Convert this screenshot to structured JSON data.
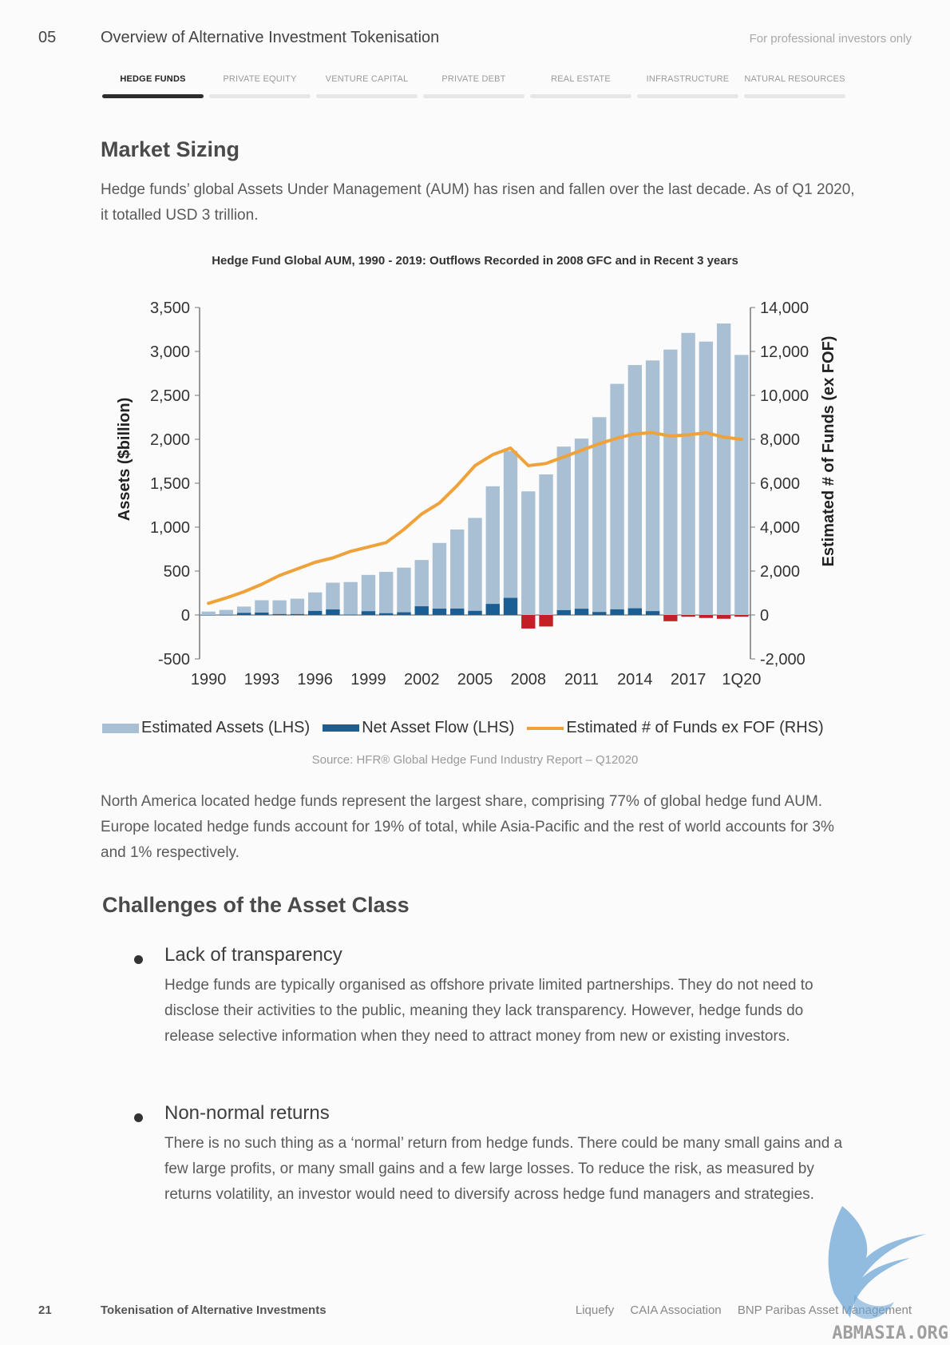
{
  "header": {
    "section_number": "05",
    "section_title": "Overview of Alternative Investment Tokenisation",
    "audience_note": "For professional investors only"
  },
  "tabs": [
    {
      "label": "HEDGE FUNDS",
      "active": true
    },
    {
      "label": "PRIVATE EQUITY",
      "active": false
    },
    {
      "label": "VENTURE CAPITAL",
      "active": false
    },
    {
      "label": "PRIVATE DEBT",
      "active": false
    },
    {
      "label": "REAL ESTATE",
      "active": false
    },
    {
      "label": "INFRASTRUCTURE",
      "active": false
    },
    {
      "label": "NATURAL RESOURCES",
      "active": false
    }
  ],
  "market_sizing": {
    "heading": "Market Sizing",
    "intro": "Hedge funds’ global Assets Under Management (AUM) has risen and fallen over the last decade. As of Q1 2020, it totalled USD 3 trillion.",
    "followup": "North America located hedge funds represent the largest share, comprising 77% of global hedge fund AUM. Europe located hedge funds account for 19% of total, while Asia-Pacific and the rest of world accounts for 3% and 1% respectively."
  },
  "chart_data": {
    "type": "bar",
    "title": "Hedge Fund Global AUM, 1990 - 2019: Outflows Recorded in 2008 GFC and in Recent 3 years",
    "source": "Source: HFR® Global Hedge Fund Industry Report – Q12020",
    "ylabel": "Assets ($billion)",
    "y2label": "Estimated # of Funds (ex FOF)",
    "ylim": [
      -500,
      3500
    ],
    "y2lim": [
      -2000,
      14000
    ],
    "yticks": [
      "3,500",
      "3,000",
      "2,500",
      "2,000",
      "1,500",
      "1,000",
      "500",
      "0",
      "-500"
    ],
    "y2ticks": [
      "14,000",
      "12,000",
      "10,000",
      "8,000",
      "6,000",
      "4,000",
      "2,000",
      "0",
      "-2,000"
    ],
    "xticks": [
      "1990",
      "1993",
      "1996",
      "1999",
      "2002",
      "2005",
      "2008",
      "2011",
      "2014",
      "2017",
      "1Q20"
    ],
    "categories": [
      "1990",
      "1991",
      "1992",
      "1993",
      "1994",
      "1995",
      "1996",
      "1997",
      "1998",
      "1999",
      "2000",
      "2001",
      "2002",
      "2003",
      "2004",
      "2005",
      "2006",
      "2007",
      "2008",
      "2009",
      "2010",
      "2011",
      "2012",
      "2013",
      "2014",
      "2015",
      "2016",
      "2017",
      "2018",
      "2019",
      "1Q20"
    ],
    "legend_position": "bottom",
    "colors": {
      "assets": "#a9bfd3",
      "inflow": "#1a5e93",
      "outflow": "#c41f24",
      "funds_line": "#f0a23a"
    },
    "series": [
      {
        "name": "Estimated Assets (LHS)",
        "axis": "left",
        "kind": "bar",
        "values": [
          39,
          58,
          96,
          168,
          167,
          186,
          257,
          368,
          375,
          456,
          491,
          539,
          626,
          820,
          973,
          1105,
          1465,
          1868,
          1407,
          1600,
          1917,
          2008,
          2252,
          2631,
          2845,
          2897,
          3021,
          3211,
          3112,
          3318,
          2960
        ]
      },
      {
        "name": "Net Asset Flow (LHS)",
        "axis": "left",
        "kind": "bar",
        "values": [
          0,
          2,
          24,
          27,
          10,
          10,
          46,
          63,
          4,
          43,
          20,
          31,
          99,
          72,
          73,
          47,
          126,
          195,
          -154,
          -131,
          55,
          71,
          34,
          64,
          76,
          44,
          -71,
          -20,
          -34,
          -43,
          -20
        ]
      },
      {
        "name": "Estimated # of Funds ex FOF (RHS)",
        "axis": "right",
        "kind": "line",
        "values": [
          530,
          780,
          1060,
          1400,
          1800,
          2100,
          2400,
          2600,
          2900,
          3100,
          3300,
          3900,
          4600,
          5100,
          5900,
          6800,
          7300,
          7600,
          6800,
          6900,
          7200,
          7500,
          7800,
          8050,
          8250,
          8300,
          8150,
          8200,
          8300,
          8100,
          8000
        ]
      }
    ]
  },
  "challenges": {
    "heading": "Challenges of the Asset Class",
    "items": [
      {
        "title": "Lack of transparency",
        "body": "Hedge funds are typically organised as offshore private limited partnerships. They do not need to disclose their activities to the public, meaning they lack transparency. However, hedge funds do release selective information when they need to attract money from new or existing investors."
      },
      {
        "title": "Non-normal returns",
        "body": "There is no such thing as a ‘normal’ return from hedge funds. There could be many small gains and a few large profits, or many small gains and a few large losses. To reduce the risk, as measured by returns volatility, an investor would need to diversify across hedge fund managers and strategies."
      }
    ]
  },
  "footer": {
    "page_number": "21",
    "doc_title": "Tokenisation of Alternative Investments",
    "partners": [
      "Liquefy",
      "CAIA Association",
      "BNP Paribas Asset Management"
    ]
  },
  "watermark": {
    "text": "ABMASIA.ORG"
  }
}
